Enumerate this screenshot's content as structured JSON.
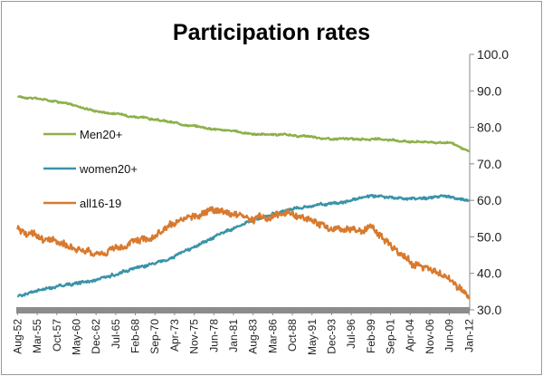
{
  "chart_data": {
    "type": "line",
    "title": "Participation rates",
    "xlabel": "",
    "ylabel": "",
    "ylim": [
      30,
      100
    ],
    "yticks": [
      "30.0",
      "40.0",
      "50.0",
      "60.0",
      "70.0",
      "80.0",
      "90.0",
      "100.0"
    ],
    "x_range": [
      "Aug-52",
      "Jan-12"
    ],
    "x_ticks": [
      "Aug-52",
      "Mar-55",
      "Oct-57",
      "May-60",
      "Dec-62",
      "Jul-65",
      "Feb-68",
      "Sep-70",
      "Apr-73",
      "Nov-75",
      "Jun-78",
      "Jan-81",
      "Aug-83",
      "Mar-86",
      "Oct-88",
      "May-91",
      "Dec-93",
      "Jul-96",
      "Feb-99",
      "Sep-01",
      "Apr-04",
      "Nov-06",
      "Jun-09",
      "Jan-12"
    ],
    "grid": false,
    "legend": "left",
    "series": [
      {
        "name": "Men20+",
        "color": "#8db04a",
        "x": [
          "Aug-52",
          "Oct-57",
          "Dec-62",
          "Feb-68",
          "Apr-73",
          "Jun-78",
          "Aug-83",
          "Oct-88",
          "Dec-93",
          "Feb-99",
          "Apr-04",
          "Jun-09",
          "Jan-12"
        ],
        "values": [
          88.5,
          87.2,
          84.5,
          83.0,
          81.2,
          79.6,
          78.2,
          77.8,
          76.8,
          76.8,
          76.2,
          75.8,
          73.3
        ]
      },
      {
        "name": "women20+",
        "color": "#3a93a9",
        "x": [
          "Aug-52",
          "Oct-57",
          "Dec-62",
          "Feb-68",
          "Apr-73",
          "Jun-78",
          "Aug-83",
          "Oct-88",
          "Dec-93",
          "Feb-99",
          "Apr-04",
          "Jun-09",
          "Jan-12"
        ],
        "values": [
          33.8,
          36.5,
          38.2,
          41.5,
          44.5,
          50.0,
          54.5,
          57.8,
          59.2,
          61.0,
          60.5,
          61.0,
          59.8
        ]
      },
      {
        "name": "all16-19",
        "color": "#d87a2e",
        "x": [
          "Aug-52",
          "Oct-57",
          "Dec-62",
          "Feb-68",
          "Apr-73",
          "Jun-78",
          "Aug-83",
          "Oct-88",
          "Dec-93",
          "Feb-99",
          "Apr-04",
          "Jun-09",
          "Jan-12"
        ],
        "values": [
          52.0,
          48.5,
          44.8,
          48.5,
          53.0,
          58.0,
          55.0,
          56.5,
          51.8,
          52.0,
          43.5,
          38.5,
          33.5
        ]
      }
    ]
  }
}
